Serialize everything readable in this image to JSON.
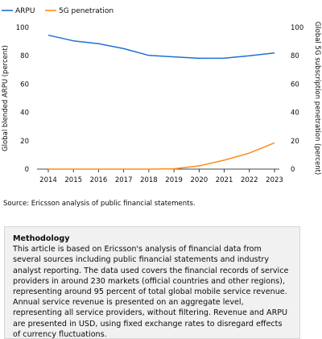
{
  "chart_data": {
    "type": "line",
    "x": [
      2014,
      2015,
      2016,
      2017,
      2018,
      2019,
      2020,
      2021,
      2022,
      2023
    ],
    "series": [
      {
        "name": "ARPU",
        "axis": "left",
        "color": "#1f6fd6",
        "values": [
          94.5,
          90.5,
          88.5,
          85,
          80.2,
          79.2,
          78.2,
          78.3,
          80,
          82
        ]
      },
      {
        "name": "5G penetration",
        "axis": "right",
        "color": "#ff8c1a",
        "values": [
          0,
          0,
          0,
          0,
          0,
          0.2,
          2.3,
          6.3,
          11.3,
          18.5
        ]
      }
    ],
    "ylabel": "Global blended ARPU (percent)",
    "y2label": "Global 5G subscription penetration (percent)",
    "ylim": [
      0,
      100
    ],
    "y2lim": [
      0,
      100
    ],
    "yticks": [
      0,
      20,
      40,
      60,
      80,
      100
    ],
    "grid": false,
    "legend_position": "top-left"
  },
  "source": "Source: Ericsson analysis of public financial statements.",
  "methodology": {
    "title": "Methodology",
    "body": "This article is based on Ericsson's analysis of financial data from several sources including public financial statements and industry analyst reporting. The data used covers the financial records of service providers in around 230 markets (official countries and other regions), representing around 95 percent of total global mobile service revenue. Annual service revenue is presented on an aggregate level, representing all service providers, without filtering. Revenue and ARPU are presented in USD, using fixed exchange rates to disregard effects of currency fluctuations."
  }
}
